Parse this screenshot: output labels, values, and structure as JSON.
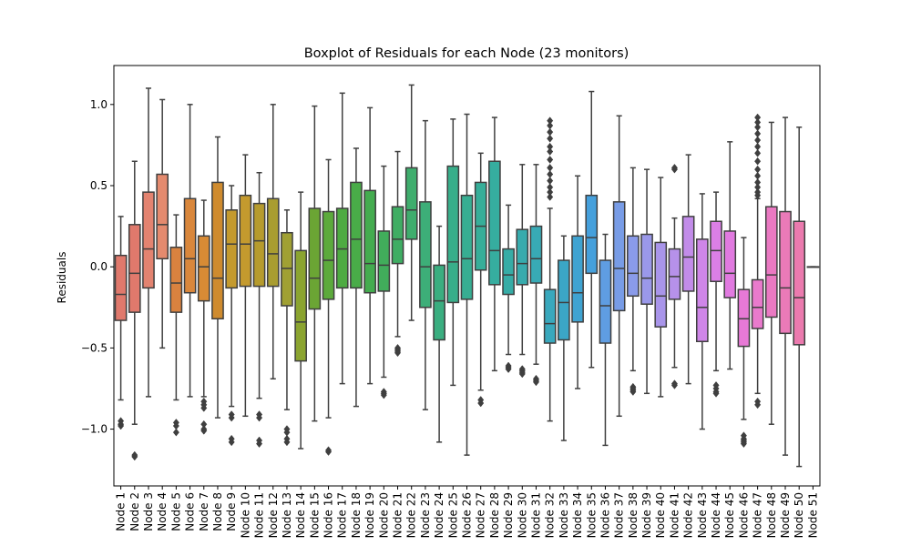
{
  "chart_data": {
    "type": "boxplot",
    "title": "Boxplot of Residuals for each Node (23 monitors)",
    "xlabel": "",
    "ylabel": "Residuals",
    "ylim": [
      -1.35,
      1.24
    ],
    "yticks": [
      -1.0,
      -0.5,
      0.0,
      0.5,
      1.0
    ],
    "ytick_labels": [
      "−1.0",
      "−0.5",
      "0.0",
      "0.5",
      "1.0"
    ],
    "grid": false,
    "legend": "none",
    "highlight_color": "#ff0000",
    "label_color": "#000000",
    "boxes": [
      {
        "label": "Node 1",
        "highlight": true,
        "color": "#e0796c",
        "whislo": -0.82,
        "q1": -0.33,
        "med": -0.17,
        "q3": 0.07,
        "whishi": 0.31,
        "fliers": [
          -0.95,
          -0.97,
          -0.98
        ]
      },
      {
        "label": "Node 2",
        "highlight": false,
        "color": "#e0796c",
        "whislo": -0.97,
        "q1": -0.28,
        "med": -0.04,
        "q3": 0.26,
        "whishi": 0.65,
        "fliers": [
          -1.16,
          -1.17
        ]
      },
      {
        "label": "Node 3",
        "highlight": true,
        "color": "#e38370",
        "whislo": -0.8,
        "q1": -0.13,
        "med": 0.11,
        "q3": 0.46,
        "whishi": 1.1,
        "fliers": []
      },
      {
        "label": "Node 4",
        "highlight": false,
        "color": "#e48a6e",
        "whislo": -0.5,
        "q1": 0.05,
        "med": 0.26,
        "q3": 0.57,
        "whishi": 1.03,
        "fliers": []
      },
      {
        "label": "Node 5",
        "highlight": true,
        "color": "#d9823f",
        "whislo": -0.82,
        "q1": -0.28,
        "med": -0.1,
        "q3": 0.12,
        "whishi": 0.32,
        "fliers": [
          -0.96,
          -0.98,
          -1.02
        ]
      },
      {
        "label": "Node 6",
        "highlight": false,
        "color": "#d9873c",
        "whislo": -0.8,
        "q1": -0.16,
        "med": 0.05,
        "q3": 0.42,
        "whishi": 1.0,
        "fliers": []
      },
      {
        "label": "Node 7",
        "highlight": true,
        "color": "#d88b35",
        "whislo": -0.8,
        "q1": -0.21,
        "med": 0.0,
        "q3": 0.19,
        "whishi": 0.41,
        "fliers": [
          -0.83,
          -0.85,
          -0.87,
          -0.97,
          -1.0,
          -1.01
        ]
      },
      {
        "label": "Node 8",
        "highlight": false,
        "color": "#cf8b2e",
        "whislo": -0.93,
        "q1": -0.32,
        "med": -0.07,
        "q3": 0.52,
        "whishi": 0.8,
        "fliers": []
      },
      {
        "label": "Node 9",
        "highlight": true,
        "color": "#c49a2e",
        "whislo": -0.86,
        "q1": -0.13,
        "med": 0.14,
        "q3": 0.35,
        "whishi": 0.5,
        "fliers": [
          -0.91,
          -0.93,
          -1.06,
          -1.08
        ]
      },
      {
        "label": "Node 10",
        "highlight": false,
        "color": "#c49a2e",
        "whislo": -0.92,
        "q1": -0.12,
        "med": 0.14,
        "q3": 0.44,
        "whishi": 0.69,
        "fliers": []
      },
      {
        "label": "Node 11",
        "highlight": true,
        "color": "#b69b2d",
        "whislo": -0.81,
        "q1": -0.12,
        "med": 0.16,
        "q3": 0.39,
        "whishi": 0.58,
        "fliers": [
          -0.91,
          -0.93,
          -1.07,
          -1.09
        ]
      },
      {
        "label": "Node 12",
        "highlight": false,
        "color": "#a99d30",
        "whislo": -0.69,
        "q1": -0.12,
        "med": 0.08,
        "q3": 0.42,
        "whishi": 1.0,
        "fliers": []
      },
      {
        "label": "Node 13",
        "highlight": true,
        "color": "#a0a033",
        "whislo": -0.88,
        "q1": -0.24,
        "med": -0.01,
        "q3": 0.21,
        "whishi": 0.35,
        "fliers": [
          -1.0,
          -1.02,
          -1.06,
          -1.08
        ]
      },
      {
        "label": "Node 14",
        "highlight": false,
        "color": "#8ba430",
        "whislo": -1.12,
        "q1": -0.58,
        "med": -0.34,
        "q3": 0.1,
        "whishi": 0.46,
        "fliers": []
      },
      {
        "label": "Node 15",
        "highlight": true,
        "color": "#6ba534",
        "whislo": -0.95,
        "q1": -0.26,
        "med": -0.07,
        "q3": 0.36,
        "whishi": 0.99,
        "fliers": []
      },
      {
        "label": "Node 16",
        "highlight": false,
        "color": "#5caa3c",
        "whislo": -0.93,
        "q1": -0.2,
        "med": 0.04,
        "q3": 0.34,
        "whishi": 0.66,
        "fliers": [
          -1.13,
          -1.14
        ]
      },
      {
        "label": "Node 17",
        "highlight": true,
        "color": "#4eab42",
        "whislo": -0.72,
        "q1": -0.13,
        "med": 0.11,
        "q3": 0.36,
        "whishi": 1.07,
        "fliers": []
      },
      {
        "label": "Node 18",
        "highlight": false,
        "color": "#49ac48",
        "whislo": -0.86,
        "q1": -0.13,
        "med": 0.17,
        "q3": 0.52,
        "whishi": 0.73,
        "fliers": []
      },
      {
        "label": "Node 19",
        "highlight": true,
        "color": "#44ac4f",
        "whislo": -0.72,
        "q1": -0.16,
        "med": 0.02,
        "q3": 0.47,
        "whishi": 0.98,
        "fliers": []
      },
      {
        "label": "Node 20",
        "highlight": false,
        "color": "#41ad5b",
        "whislo": -0.68,
        "q1": -0.15,
        "med": 0.01,
        "q3": 0.22,
        "whishi": 0.62,
        "fliers": [
          -0.77,
          -0.78,
          -0.79
        ]
      },
      {
        "label": "Node 21",
        "highlight": false,
        "color": "#3fad63",
        "whislo": -0.43,
        "q1": 0.02,
        "med": 0.17,
        "q3": 0.37,
        "whishi": 0.71,
        "fliers": [
          -0.5,
          -0.51,
          -0.52,
          -0.53
        ]
      },
      {
        "label": "Node 22",
        "highlight": true,
        "color": "#3fad6d",
        "whislo": -0.33,
        "q1": 0.17,
        "med": 0.35,
        "q3": 0.61,
        "whishi": 1.12,
        "fliers": []
      },
      {
        "label": "Node 23",
        "highlight": false,
        "color": "#3dae78",
        "whislo": -0.88,
        "q1": -0.25,
        "med": 0.0,
        "q3": 0.4,
        "whishi": 0.9,
        "fliers": []
      },
      {
        "label": "Node 24",
        "highlight": false,
        "color": "#3aae80",
        "whislo": -1.08,
        "q1": -0.45,
        "med": -0.21,
        "q3": 0.01,
        "whishi": 0.25,
        "fliers": []
      },
      {
        "label": "Node 25",
        "highlight": true,
        "color": "#38ae8a",
        "whislo": -0.73,
        "q1": -0.22,
        "med": 0.03,
        "q3": 0.62,
        "whishi": 0.91,
        "fliers": []
      },
      {
        "label": "Node 26",
        "highlight": true,
        "color": "#37ae92",
        "whislo": -1.16,
        "q1": -0.2,
        "med": 0.05,
        "q3": 0.44,
        "whishi": 0.94,
        "fliers": []
      },
      {
        "label": "Node 27",
        "highlight": true,
        "color": "#36ae99",
        "whislo": -0.76,
        "q1": -0.02,
        "med": 0.25,
        "q3": 0.52,
        "whishi": 0.7,
        "fliers": [
          -0.82,
          -0.84
        ]
      },
      {
        "label": "Node 28",
        "highlight": false,
        "color": "#36ad9f",
        "whislo": -0.64,
        "q1": -0.11,
        "med": 0.1,
        "q3": 0.65,
        "whishi": 0.92,
        "fliers": []
      },
      {
        "label": "Node 29",
        "highlight": true,
        "color": "#36aca6",
        "whislo": -0.54,
        "q1": -0.17,
        "med": -0.05,
        "q3": 0.11,
        "whishi": 0.38,
        "fliers": [
          -0.61,
          -0.62,
          -0.63
        ]
      },
      {
        "label": "Node 30",
        "highlight": false,
        "color": "#37abad",
        "whislo": -0.54,
        "q1": -0.11,
        "med": 0.02,
        "q3": 0.23,
        "whishi": 0.63,
        "fliers": [
          -0.63,
          -0.64,
          -0.65,
          -0.66
        ]
      },
      {
        "label": "Node 31",
        "highlight": false,
        "color": "#38aab5",
        "whislo": -0.6,
        "q1": -0.1,
        "med": 0.05,
        "q3": 0.25,
        "whishi": 0.63,
        "fliers": [
          -0.69,
          -0.7,
          -0.71
        ]
      },
      {
        "label": "Node 32",
        "highlight": true,
        "color": "#39a8bd",
        "whislo": -0.95,
        "q1": -0.47,
        "med": -0.35,
        "q3": -0.14,
        "whishi": 0.36,
        "fliers": [
          0.43,
          0.46,
          0.49,
          0.53,
          0.57,
          0.61,
          0.66,
          0.71,
          0.74,
          0.79,
          0.83,
          0.87,
          0.9
        ]
      },
      {
        "label": "Node 33",
        "highlight": false,
        "color": "#3ba6c6",
        "whislo": -1.07,
        "q1": -0.45,
        "med": -0.22,
        "q3": 0.04,
        "whishi": 0.19,
        "fliers": []
      },
      {
        "label": "Node 34",
        "highlight": false,
        "color": "#3fa3d1",
        "whislo": -0.75,
        "q1": -0.34,
        "med": -0.16,
        "q3": 0.19,
        "whishi": 0.56,
        "fliers": []
      },
      {
        "label": "Node 35",
        "highlight": true,
        "color": "#45a0dc",
        "whislo": -0.62,
        "q1": -0.04,
        "med": 0.18,
        "q3": 0.44,
        "whishi": 1.08,
        "fliers": []
      },
      {
        "label": "Node 36",
        "highlight": false,
        "color": "#5f9de2",
        "whislo": -1.1,
        "q1": -0.47,
        "med": -0.24,
        "q3": 0.04,
        "whishi": 0.2,
        "fliers": []
      },
      {
        "label": "Node 37",
        "highlight": true,
        "color": "#789ce6",
        "whislo": -0.92,
        "q1": -0.27,
        "med": -0.01,
        "q3": 0.4,
        "whishi": 0.93,
        "fliers": []
      },
      {
        "label": "Node 38",
        "highlight": false,
        "color": "#8a9bea",
        "whislo": -0.64,
        "q1": -0.18,
        "med": -0.04,
        "q3": 0.19,
        "whishi": 0.61,
        "fliers": [
          -0.74,
          -0.75,
          -0.76,
          -0.77
        ]
      },
      {
        "label": "Node 39",
        "highlight": false,
        "color": "#9a98ea",
        "whislo": -0.78,
        "q1": -0.23,
        "med": -0.07,
        "q3": 0.2,
        "whishi": 0.6,
        "fliers": []
      },
      {
        "label": "Node 40",
        "highlight": false,
        "color": "#a995ea",
        "whislo": -0.8,
        "q1": -0.37,
        "med": -0.18,
        "q3": 0.15,
        "whishi": 0.55,
        "fliers": []
      },
      {
        "label": "Node 41",
        "highlight": true,
        "color": "#b691ea",
        "whislo": -0.62,
        "q1": -0.2,
        "med": -0.06,
        "q3": 0.11,
        "whishi": 0.3,
        "fliers": [
          -0.72,
          -0.73,
          0.6,
          0.61
        ]
      },
      {
        "label": "Node 42",
        "highlight": false,
        "color": "#c28ce9",
        "whislo": -0.72,
        "q1": -0.15,
        "med": 0.06,
        "q3": 0.31,
        "whishi": 0.69,
        "fliers": []
      },
      {
        "label": "Node 43",
        "highlight": false,
        "color": "#cf86e8",
        "whislo": -1.0,
        "q1": -0.46,
        "med": -0.25,
        "q3": 0.17,
        "whishi": 0.45,
        "fliers": []
      },
      {
        "label": "Node 44",
        "highlight": true,
        "color": "#db7fe6",
        "whislo": -0.64,
        "q1": -0.09,
        "med": 0.1,
        "q3": 0.28,
        "whishi": 0.46,
        "fliers": [
          -0.73,
          -0.75,
          -0.77,
          -0.78
        ]
      },
      {
        "label": "Node 45",
        "highlight": false,
        "color": "#e17ae0",
        "whislo": -0.63,
        "q1": -0.19,
        "med": -0.04,
        "q3": 0.22,
        "whishi": 0.77,
        "fliers": []
      },
      {
        "label": "Node 46",
        "highlight": false,
        "color": "#e779d6",
        "whislo": -0.94,
        "q1": -0.49,
        "med": -0.32,
        "q3": -0.14,
        "whishi": 0.18,
        "fliers": [
          -1.04,
          -1.06,
          -1.07,
          -1.08,
          -1.09
        ]
      },
      {
        "label": "Node 47",
        "highlight": true,
        "color": "#e97acc",
        "whislo": -0.78,
        "q1": -0.38,
        "med": -0.25,
        "q3": -0.08,
        "whishi": 0.42,
        "fliers": [
          -0.83,
          -0.85,
          0.44,
          0.46,
          0.49,
          0.52,
          0.56,
          0.6,
          0.65,
          0.7,
          0.74,
          0.78,
          0.82,
          0.86,
          0.89,
          0.92
        ]
      },
      {
        "label": "Node 48",
        "highlight": false,
        "color": "#ea79c2",
        "whislo": -0.97,
        "q1": -0.31,
        "med": -0.05,
        "q3": 0.37,
        "whishi": 0.89,
        "fliers": []
      },
      {
        "label": "Node 49",
        "highlight": true,
        "color": "#ea7ab8",
        "whislo": -1.16,
        "q1": -0.41,
        "med": -0.13,
        "q3": 0.34,
        "whishi": 0.92,
        "fliers": []
      },
      {
        "label": "Node 50",
        "highlight": false,
        "color": "#eb7aae",
        "whislo": -1.23,
        "q1": -0.48,
        "med": -0.19,
        "q3": 0.28,
        "whishi": 0.86,
        "fliers": []
      },
      {
        "label": "Node 51",
        "highlight": true,
        "color": "#eb7aa5",
        "whislo": 0.0,
        "q1": 0.0,
        "med": 0.0,
        "q3": 0.0,
        "whishi": 0.0,
        "fliers": []
      }
    ]
  }
}
